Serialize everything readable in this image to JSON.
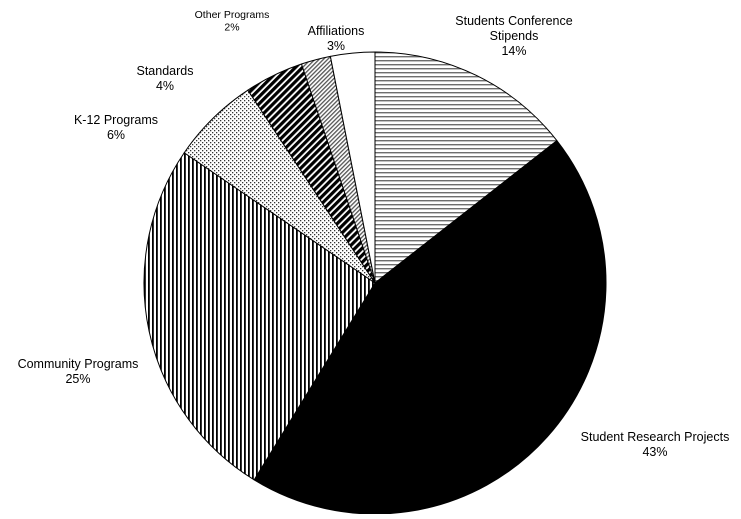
{
  "chart_data": {
    "type": "pie",
    "title": "",
    "unit": "%",
    "start_angle": "12 o'clock",
    "direction": "clockwise",
    "slices": [
      {
        "label": "Students Conference Stipends",
        "label_lines": [
          "Students Conference",
          "Stipends"
        ],
        "value": 14,
        "value_text": "14%",
        "fill": "hstripe"
      },
      {
        "label": "Student Research Projects",
        "label_lines": [
          "Student Research Projects"
        ],
        "value": 43,
        "value_text": "43%",
        "fill": "solid-black"
      },
      {
        "label": "Community Programs",
        "label_lines": [
          "Community Programs"
        ],
        "value": 25,
        "value_text": "25%",
        "fill": "vstripe"
      },
      {
        "label": "K-12 Programs",
        "label_lines": [
          "K-12 Programs"
        ],
        "value": 6,
        "value_text": "6%",
        "fill": "dots"
      },
      {
        "label": "Standards",
        "label_lines": [
          "Standards"
        ],
        "value": 4,
        "value_text": "4%",
        "fill": "bold-diagonal"
      },
      {
        "label": "Other Programs",
        "label_lines": [
          "Other Programs"
        ],
        "value": 2,
        "value_text": "2%",
        "fill": "fine-diagonal"
      },
      {
        "label": "Affiliations",
        "label_lines": [
          "Affiliations"
        ],
        "value": 3,
        "value_text": "3%",
        "fill": "white"
      }
    ],
    "colors": {
      "stroke": "#000000",
      "background": "#ffffff"
    }
  }
}
